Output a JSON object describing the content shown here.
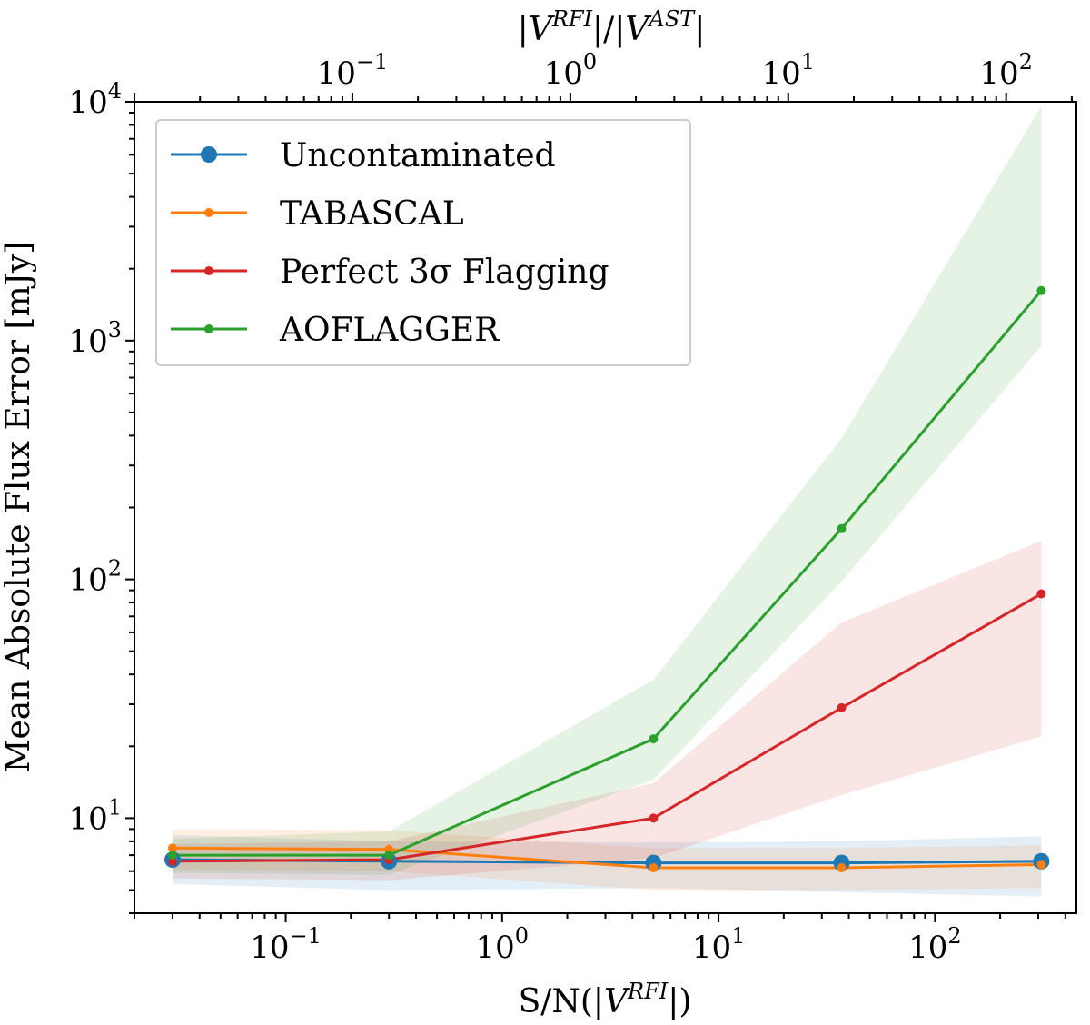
{
  "chart_data": {
    "type": "line",
    "x_scale": "log",
    "y_scale": "log",
    "xlim": [
      0.02,
      450
    ],
    "ylim": [
      4,
      10000
    ],
    "top_xlim": [
      0.01,
      210
    ],
    "xlabel": "S/N(|V^{RFI}|)",
    "ylabel": "Mean Absolute Flux Error [mJy]",
    "top_xlabel": "|V^{RFI}|/|V^{AST}|",
    "xticks": [
      {
        "value": 0.1,
        "base": "10",
        "exp": "−1"
      },
      {
        "value": 1,
        "base": "10",
        "exp": "0"
      },
      {
        "value": 10,
        "base": "10",
        "exp": "1"
      },
      {
        "value": 100,
        "base": "10",
        "exp": "2"
      }
    ],
    "top_xticks": [
      {
        "value": 0.1,
        "base": "10",
        "exp": "−1"
      },
      {
        "value": 1,
        "base": "10",
        "exp": "0"
      },
      {
        "value": 10,
        "base": "10",
        "exp": "1"
      },
      {
        "value": 100,
        "base": "10",
        "exp": "2"
      }
    ],
    "yticks": [
      {
        "value": 10,
        "base": "10",
        "exp": "1"
      },
      {
        "value": 100,
        "base": "10",
        "exp": "2"
      },
      {
        "value": 1000,
        "base": "10",
        "exp": "3"
      },
      {
        "value": 10000,
        "base": "10",
        "exp": "4"
      }
    ],
    "x": [
      0.03,
      0.3,
      5,
      37,
      310
    ],
    "series": [
      {
        "name": "Uncontaminated",
        "color": "#1f77b4",
        "marker": "large",
        "values": [
          6.7,
          6.6,
          6.5,
          6.5,
          6.6
        ],
        "lower": [
          5.3,
          5.0,
          5.1,
          4.9,
          4.7
        ],
        "upper": [
          8.5,
          8.0,
          7.9,
          8.0,
          8.4
        ]
      },
      {
        "name": "TABASCAL",
        "color": "#ff7f0e",
        "marker": "small",
        "values": [
          7.5,
          7.4,
          6.2,
          6.2,
          6.4
        ],
        "lower": [
          6.1,
          6.0,
          5.0,
          5.0,
          5.1
        ],
        "upper": [
          9.0,
          8.9,
          7.5,
          7.5,
          7.7
        ]
      },
      {
        "name": "Perfect 3σ Flagging",
        "color": "#d62728",
        "marker": "small",
        "values": [
          6.6,
          6.7,
          10,
          29,
          87
        ],
        "lower": [
          5.6,
          5.5,
          6.8,
          12.5,
          22
        ],
        "upper": [
          7.8,
          8.0,
          14,
          66,
          145
        ]
      },
      {
        "name": "AOFLAGGER",
        "color": "#2ca02c",
        "marker": "small",
        "values": [
          7.0,
          7.0,
          21.5,
          163,
          1620
        ],
        "lower": [
          5.9,
          5.8,
          14.5,
          98,
          950
        ],
        "upper": [
          8.2,
          8.8,
          38,
          390,
          9600
        ]
      }
    ],
    "legend": "top-left",
    "grid": false
  }
}
